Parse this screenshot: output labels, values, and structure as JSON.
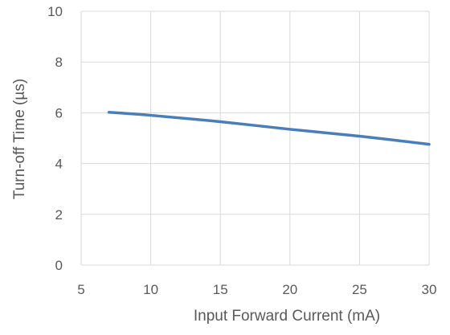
{
  "chart_data": {
    "type": "line",
    "title": "",
    "xlabel": "Input Forward Current (mA)",
    "ylabel": "Turn-off Time (µs)",
    "xlim": [
      5,
      30
    ],
    "ylim": [
      0,
      10
    ],
    "x_ticks": [
      5,
      10,
      15,
      20,
      25,
      30
    ],
    "y_ticks": [
      0,
      2,
      4,
      6,
      8,
      10
    ],
    "grid": true,
    "legend": "none",
    "series": [
      {
        "color": "#4a7ebb",
        "x": [
          7,
          10,
          15,
          20,
          25,
          30
        ],
        "y": [
          6.02,
          5.9,
          5.65,
          5.35,
          5.08,
          4.76
        ]
      }
    ]
  }
}
